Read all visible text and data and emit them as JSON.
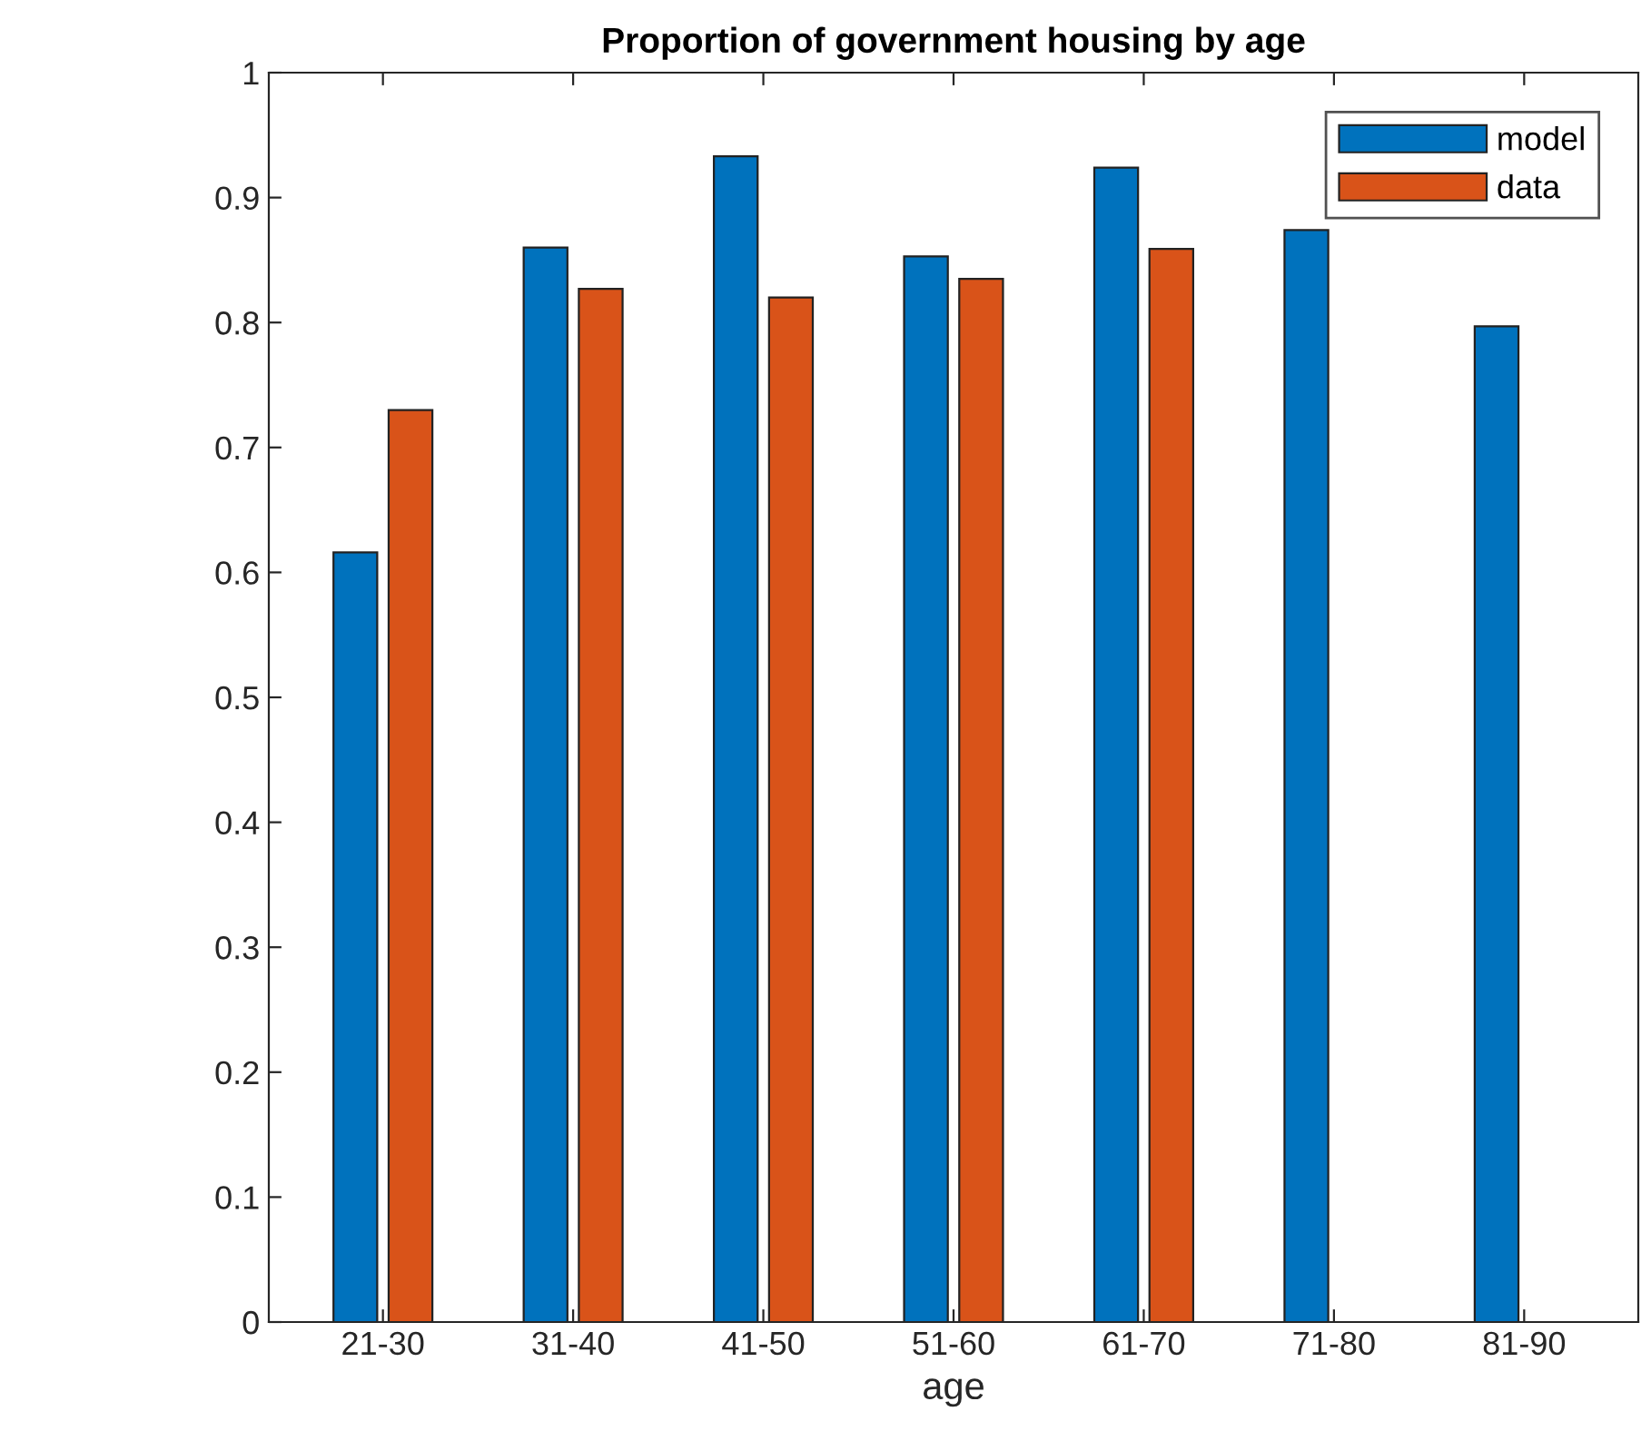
{
  "chart_data": {
    "type": "bar",
    "title": "Proportion of government housing by age",
    "xlabel": "age",
    "categories": [
      "21-30",
      "31-40",
      "41-50",
      "51-60",
      "61-70",
      "71-80",
      "81-90"
    ],
    "series": [
      {
        "name": "model",
        "color": "#0072bd",
        "values": [
          0.616,
          0.86,
          0.933,
          0.853,
          0.924,
          0.874,
          0.797
        ]
      },
      {
        "name": "data",
        "color": "#d95319",
        "values": [
          0.73,
          0.827,
          0.82,
          0.835,
          0.859,
          null,
          null
        ]
      }
    ],
    "ylim": [
      0,
      1
    ],
    "yticks": [
      0,
      0.1,
      0.2,
      0.3,
      0.4,
      0.5,
      0.6,
      0.7,
      0.8,
      0.9,
      1
    ],
    "grid": false,
    "legend": "top right"
  }
}
